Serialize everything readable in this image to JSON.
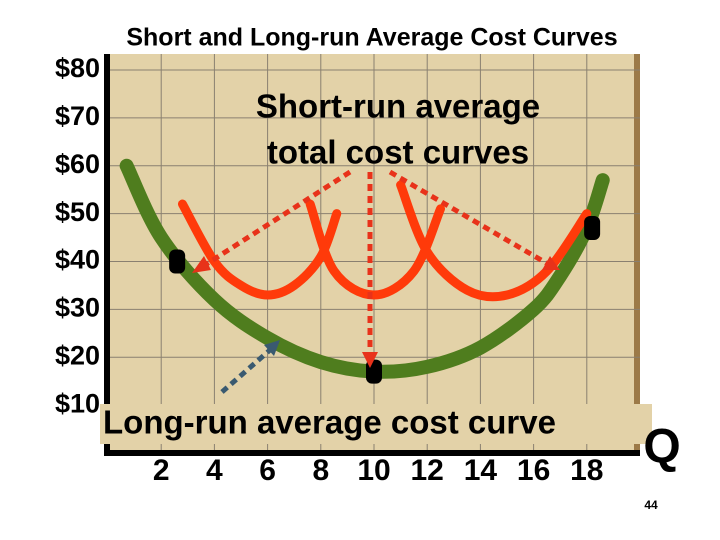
{
  "chart_data": {
    "type": "line",
    "title": "Short and Long-run Average Cost Curves",
    "annotations": [
      "Short-run average",
      "total cost curves",
      "Long-run average cost curve"
    ],
    "x_label": "Q",
    "xlim": [
      0,
      20
    ],
    "ylim": [
      0,
      80
    ],
    "xticks": [
      2,
      4,
      6,
      8,
      10,
      12,
      14,
      16,
      18
    ],
    "yticks": [
      {
        "value": 10,
        "label": "$10"
      },
      {
        "value": 20,
        "label": "$20"
      },
      {
        "value": 30,
        "label": "$30"
      },
      {
        "value": 40,
        "label": "$40"
      },
      {
        "value": 50,
        "label": "$50"
      },
      {
        "value": 60,
        "label": "$60"
      },
      {
        "value": 70,
        "label": "$70"
      },
      {
        "value": 80,
        "label": "$80"
      }
    ],
    "grid": true,
    "series": [
      {
        "color": "#4f7d1e",
        "x": [
          0.7,
          2,
          4,
          6,
          8,
          10,
          12,
          14,
          16,
          17,
          18,
          18.6
        ],
        "values": [
          60,
          45,
          32,
          24,
          19,
          17,
          18,
          22,
          30,
          37,
          47,
          57
        ]
      },
      {
        "color": "#ff3a0a",
        "x": [
          2.8,
          4,
          5,
          6,
          7,
          8,
          8.6
        ],
        "values": [
          52,
          40,
          35,
          33,
          35,
          41,
          50
        ]
      },
      {
        "color": "#ff3a0a",
        "x": [
          7.6,
          8.5,
          10,
          11.5,
          12.5
        ],
        "values": [
          52,
          38,
          33,
          38,
          51
        ]
      },
      {
        "color": "#ff3a0a",
        "x": [
          11,
          12,
          13.5,
          15,
          16.5,
          18
        ],
        "values": [
          56,
          42,
          34,
          33,
          38,
          50
        ]
      }
    ],
    "points": {
      "color": "#000000",
      "x": [
        2.6,
        10,
        18.2
      ],
      "values": [
        40,
        17,
        47
      ]
    }
  },
  "slide_number": "44"
}
